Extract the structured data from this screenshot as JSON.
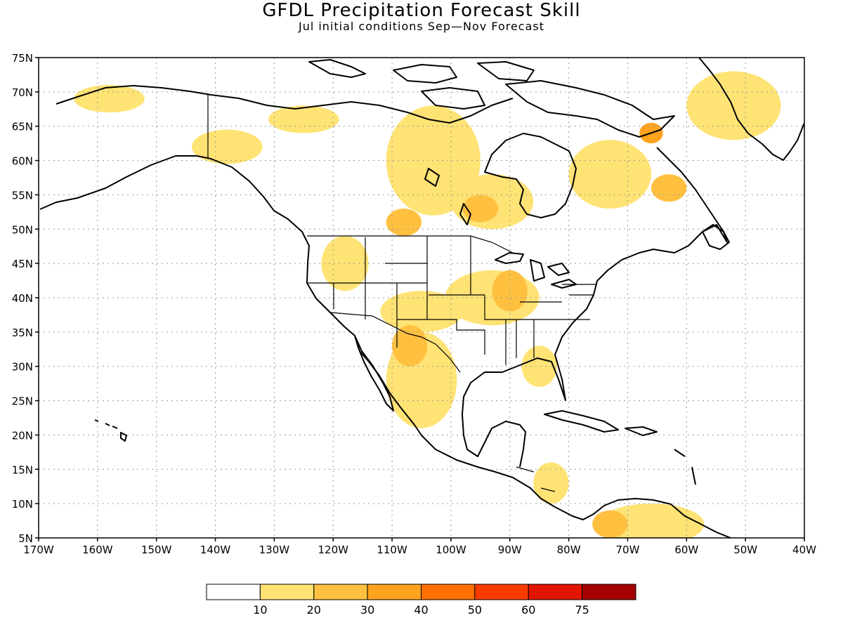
{
  "title": "GFDL Precipitation Forecast Skill",
  "subtitle": "Jul initial conditions   Sep—Nov Forecast",
  "map": {
    "lon_range": [
      -170,
      -40
    ],
    "lat_range": [
      5,
      75
    ],
    "lon_ticks": [
      -170,
      -160,
      -150,
      -140,
      -130,
      -120,
      -110,
      -100,
      -90,
      -80,
      -70,
      -60,
      -50,
      -40
    ],
    "lat_ticks": [
      5,
      10,
      15,
      20,
      25,
      30,
      35,
      40,
      45,
      50,
      55,
      60,
      65,
      70,
      75
    ],
    "lon_labels": [
      "170W",
      "160W",
      "150W",
      "140W",
      "130W",
      "120W",
      "110W",
      "100W",
      "90W",
      "80W",
      "70W",
      "60W",
      "50W",
      "40W"
    ],
    "lat_labels": [
      "5N",
      "10N",
      "15N",
      "20N",
      "25N",
      "30N",
      "35N",
      "40N",
      "45N",
      "50N",
      "55N",
      "60N",
      "65N",
      "70N",
      "75N"
    ],
    "grid": true
  },
  "colorbar": {
    "levels": [
      "10",
      "20",
      "30",
      "40",
      "50",
      "60",
      "75"
    ],
    "colors": [
      "#ffffff",
      "#ffe374",
      "#ffc040",
      "#ffa21d",
      "#ff7000",
      "#ff3c00",
      "#e11500",
      "#a50000"
    ]
  },
  "skill_regions": [
    {
      "level": 1,
      "lon": -158,
      "lat": 69,
      "dlon": 6,
      "dlat": 2
    },
    {
      "level": 1,
      "lon": -138,
      "lat": 62,
      "dlon": 6,
      "dlat": 2.5
    },
    {
      "level": 1,
      "lon": -125,
      "lat": 66,
      "dlon": 6,
      "dlat": 2
    },
    {
      "level": 1,
      "lon": -103,
      "lat": 60,
      "dlon": 8,
      "dlat": 8
    },
    {
      "level": 1,
      "lon": -93,
      "lat": 54,
      "dlon": 7,
      "dlat": 4
    },
    {
      "level": 1,
      "lon": -73,
      "lat": 58,
      "dlon": 7,
      "dlat": 5
    },
    {
      "level": 1,
      "lon": -52,
      "lat": 68,
      "dlon": 8,
      "dlat": 5
    },
    {
      "level": 1,
      "lon": -118,
      "lat": 45,
      "dlon": 4,
      "dlat": 4
    },
    {
      "level": 1,
      "lon": -93,
      "lat": 40,
      "dlon": 8,
      "dlat": 4
    },
    {
      "level": 1,
      "lon": -105,
      "lat": 38,
      "dlon": 7,
      "dlat": 3
    },
    {
      "level": 1,
      "lon": -105,
      "lat": 28,
      "dlon": 6,
      "dlat": 7
    },
    {
      "level": 1,
      "lon": -85,
      "lat": 30,
      "dlon": 3,
      "dlat": 3
    },
    {
      "level": 1,
      "lon": -66,
      "lat": 7,
      "dlon": 9,
      "dlat": 3
    },
    {
      "level": 1,
      "lon": -83,
      "lat": 13,
      "dlon": 3,
      "dlat": 3
    },
    {
      "level": 2,
      "lon": -95,
      "lat": 53,
      "dlon": 3,
      "dlat": 2
    },
    {
      "level": 2,
      "lon": -108,
      "lat": 51,
      "dlon": 3,
      "dlat": 2
    },
    {
      "level": 2,
      "lon": -107,
      "lat": 33,
      "dlon": 3,
      "dlat": 3
    },
    {
      "level": 2,
      "lon": -90,
      "lat": 41,
      "dlon": 3,
      "dlat": 3
    },
    {
      "level": 2,
      "lon": -73,
      "lat": 7,
      "dlon": 3,
      "dlat": 2
    },
    {
      "level": 2,
      "lon": -63,
      "lat": 56,
      "dlon": 3,
      "dlat": 2
    },
    {
      "level": 3,
      "lon": -66,
      "lat": 64,
      "dlon": 2,
      "dlat": 1.5
    }
  ]
}
